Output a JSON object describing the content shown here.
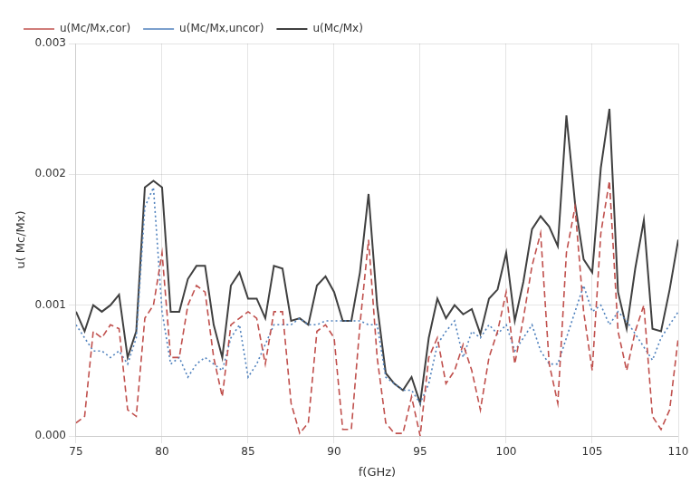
{
  "chart_data": {
    "type": "line",
    "xlabel": "f(GHz)",
    "ylabel": "u( Mc/Mx)",
    "xlim": [
      75,
      110
    ],
    "ylim": [
      0.0,
      0.003
    ],
    "xticks": [
      75,
      80,
      85,
      90,
      95,
      100,
      105,
      110
    ],
    "yticks": [
      {
        "value": 0.0,
        "label": "0.000"
      },
      {
        "value": 0.001,
        "label": "0.001"
      },
      {
        "value": 0.002,
        "label": "0.002"
      },
      {
        "value": 0.003,
        "label": "0.003"
      }
    ],
    "grid": true,
    "legend": "upper left",
    "x": [
      75.0,
      75.5,
      76.0,
      76.5,
      77.0,
      77.5,
      78.0,
      78.5,
      79.0,
      79.5,
      80.0,
      80.5,
      81.0,
      81.5,
      82.0,
      82.5,
      83.0,
      83.5,
      84.0,
      84.5,
      85.0,
      85.5,
      86.0,
      86.5,
      87.0,
      87.5,
      88.0,
      88.5,
      89.0,
      89.5,
      90.0,
      90.5,
      91.0,
      91.5,
      92.0,
      92.5,
      93.0,
      93.5,
      94.0,
      94.5,
      95.0,
      95.5,
      96.0,
      96.5,
      97.0,
      97.5,
      98.0,
      98.5,
      99.0,
      99.5,
      100.0,
      100.5,
      101.0,
      101.5,
      102.0,
      102.5,
      103.0,
      103.5,
      104.0,
      104.5,
      105.0,
      105.5,
      106.0,
      106.5,
      107.0,
      107.5,
      108.0,
      108.5,
      109.0,
      109.5,
      110.0
    ],
    "series": [
      {
        "name": "u(Mc/Mx,cor)",
        "color": "#c0504d",
        "line_style": "dashed",
        "values": [
          0.0001,
          0.00015,
          0.0008,
          0.00075,
          0.00085,
          0.00082,
          0.0002,
          0.00015,
          0.0009,
          0.001,
          0.0014,
          0.0006,
          0.0006,
          0.001,
          0.00115,
          0.0011,
          0.0006,
          0.0003,
          0.00085,
          0.0009,
          0.00095,
          0.0009,
          0.00055,
          0.00095,
          0.00095,
          0.00025,
          2e-05,
          0.0001,
          0.0008,
          0.00085,
          0.00075,
          5e-05,
          5e-05,
          0.00085,
          0.0015,
          0.0006,
          0.0001,
          2e-05,
          2e-05,
          0.0003,
          0.0,
          0.0006,
          0.00075,
          0.0004,
          0.0005,
          0.0007,
          0.0005,
          0.0002,
          0.0006,
          0.0008,
          0.0011,
          0.00055,
          0.0009,
          0.0013,
          0.00155,
          0.00055,
          0.00025,
          0.0014,
          0.00175,
          0.00095,
          0.0005,
          0.00155,
          0.00195,
          0.0008,
          0.0005,
          0.0008,
          0.001,
          0.00015,
          5e-05,
          0.0002,
          0.00075
        ]
      },
      {
        "name": "u(Mc/Mx,uncor)",
        "color": "#4f81bd",
        "line_style": "dotted",
        "values": [
          0.00085,
          0.00075,
          0.00065,
          0.00065,
          0.0006,
          0.00065,
          0.00055,
          0.00075,
          0.00175,
          0.0019,
          0.00095,
          0.00055,
          0.0006,
          0.00045,
          0.00055,
          0.0006,
          0.00055,
          0.0005,
          0.00075,
          0.00085,
          0.00045,
          0.00055,
          0.0007,
          0.00085,
          0.00085,
          0.00085,
          0.0009,
          0.00085,
          0.00085,
          0.00088,
          0.00088,
          0.00088,
          0.00088,
          0.00088,
          0.00085,
          0.00085,
          0.00045,
          0.0004,
          0.00035,
          0.00035,
          0.00025,
          0.0004,
          0.0007,
          0.0008,
          0.00088,
          0.0006,
          0.0008,
          0.00075,
          0.00085,
          0.00078,
          0.00085,
          0.00065,
          0.00075,
          0.00085,
          0.00065,
          0.00055,
          0.00055,
          0.00075,
          0.00095,
          0.00115,
          0.00095,
          0.001,
          0.00085,
          0.00095,
          0.00088,
          0.00078,
          0.00068,
          0.00058,
          0.00075,
          0.00085,
          0.00095
        ]
      },
      {
        "name": "u(Mc/Mx)",
        "color": "#404040",
        "line_style": "solid",
        "values": [
          0.00095,
          0.0008,
          0.001,
          0.00095,
          0.001,
          0.00108,
          0.0006,
          0.0008,
          0.0019,
          0.00195,
          0.0019,
          0.00095,
          0.00095,
          0.0012,
          0.0013,
          0.0013,
          0.00085,
          0.0006,
          0.00115,
          0.00125,
          0.00105,
          0.00105,
          0.0009,
          0.0013,
          0.00128,
          0.00088,
          0.0009,
          0.00085,
          0.00115,
          0.00122,
          0.0011,
          0.00088,
          0.00088,
          0.00125,
          0.00185,
          0.001,
          0.00048,
          0.0004,
          0.00035,
          0.00045,
          0.00025,
          0.00075,
          0.00105,
          0.0009,
          0.001,
          0.00093,
          0.00097,
          0.00078,
          0.00105,
          0.00112,
          0.0014,
          0.00088,
          0.00118,
          0.00158,
          0.00168,
          0.0016,
          0.00145,
          0.00245,
          0.00178,
          0.00135,
          0.00125,
          0.00205,
          0.0025,
          0.0011,
          0.00082,
          0.00128,
          0.00165,
          0.00082,
          0.0008,
          0.00112,
          0.0015
        ]
      }
    ]
  }
}
